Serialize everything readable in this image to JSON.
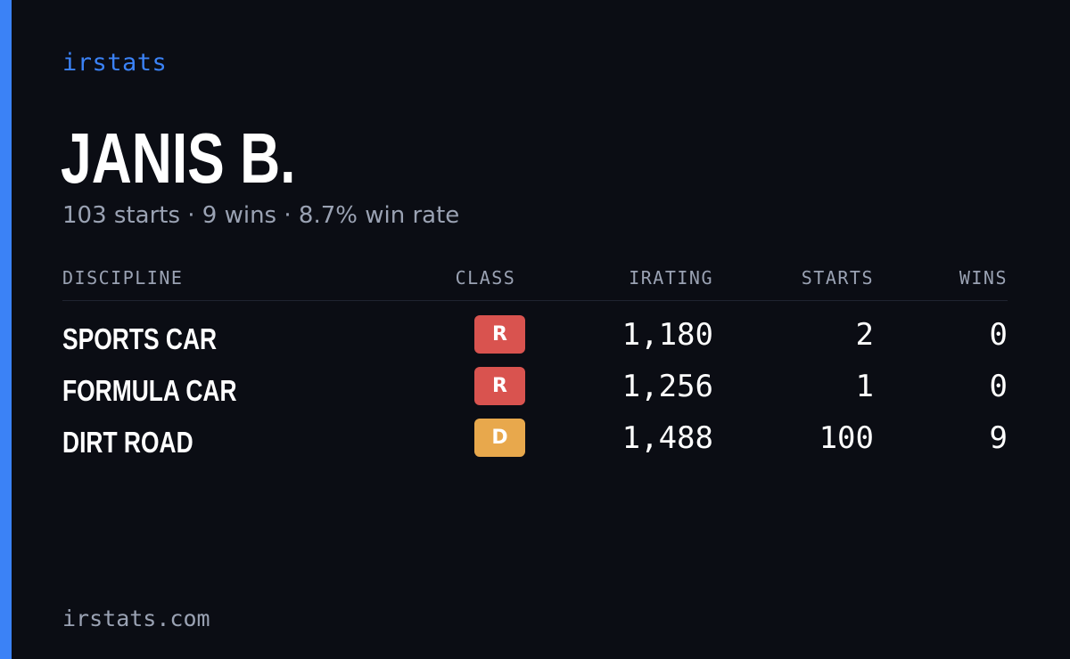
{
  "brand": "irstats",
  "driver": {
    "name": "JANIS B.",
    "summary": "103 starts · 9 wins · 8.7% win rate"
  },
  "table": {
    "headers": {
      "discipline": "DISCIPLINE",
      "class": "CLASS",
      "irating": "IRATING",
      "starts": "STARTS",
      "wins": "WINS"
    },
    "rows": [
      {
        "discipline": "SPORTS CAR",
        "class": "R",
        "class_color": "#d9534f",
        "irating": "1,180",
        "starts": "2",
        "wins": "0"
      },
      {
        "discipline": "FORMULA CAR",
        "class": "R",
        "class_color": "#d9534f",
        "irating": "1,256",
        "starts": "1",
        "wins": "0"
      },
      {
        "discipline": "DIRT ROAD",
        "class": "D",
        "class_color": "#e8a84c",
        "irating": "1,488",
        "starts": "100",
        "wins": "9"
      }
    ]
  },
  "colors": {
    "accent": "#3b82f6",
    "background": "#0b0d14",
    "muted": "#9aa2b3"
  },
  "footer": "irstats.com"
}
